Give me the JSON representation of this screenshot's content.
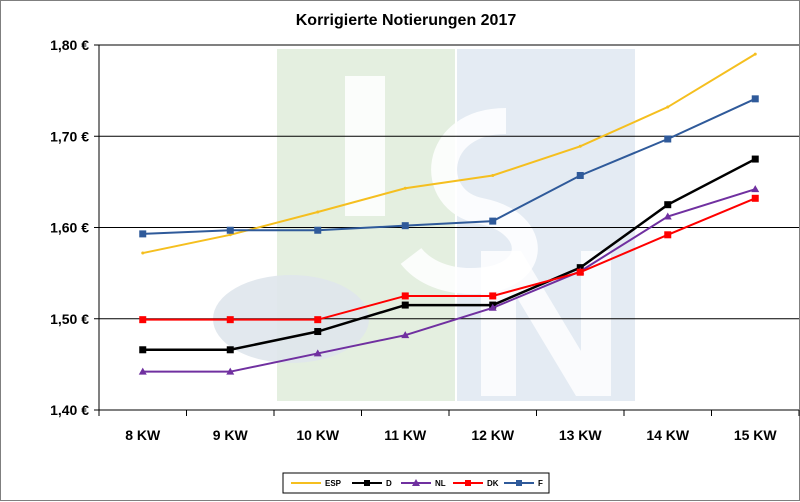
{
  "chart_data": {
    "type": "line",
    "title": "Korrigierte Notierungen 2017",
    "xlabel": "",
    "ylabel": "",
    "categories": [
      "8 KW",
      "9 KW",
      "10 KW",
      "11 KW",
      "12 KW",
      "13 KW",
      "14 KW",
      "15 KW"
    ],
    "ylim": [
      1.4,
      1.8
    ],
    "yticks": [
      1.4,
      1.5,
      1.6,
      1.7,
      1.8
    ],
    "ytick_labels": [
      "1,40 €",
      "1,50 €",
      "1,60 €",
      "1,70 €",
      "1,80 €"
    ],
    "grid": true,
    "legend_position": "bottom",
    "background_watermark": "ISN",
    "series": [
      {
        "name": "ESP",
        "color": "#f5bf1f",
        "marker": "none",
        "values": [
          1.572,
          1.592,
          1.617,
          1.643,
          1.657,
          1.689,
          1.732,
          1.79
        ]
      },
      {
        "name": "D",
        "color": "#000000",
        "marker": "square",
        "values": [
          1.466,
          1.466,
          1.486,
          1.515,
          1.515,
          1.556,
          1.625,
          1.675
        ]
      },
      {
        "name": "NL",
        "color": "#7030a0",
        "marker": "triangle",
        "values": [
          1.442,
          1.442,
          1.462,
          1.482,
          1.512,
          1.552,
          1.612,
          1.642
        ]
      },
      {
        "name": "DK",
        "color": "#ff0000",
        "marker": "square",
        "values": [
          1.499,
          1.499,
          1.499,
          1.525,
          1.525,
          1.551,
          1.592,
          1.632
        ]
      },
      {
        "name": "F",
        "color": "#2f5a9a",
        "marker": "square",
        "values": [
          1.593,
          1.597,
          1.597,
          1.602,
          1.607,
          1.657,
          1.697,
          1.741
        ]
      }
    ]
  }
}
